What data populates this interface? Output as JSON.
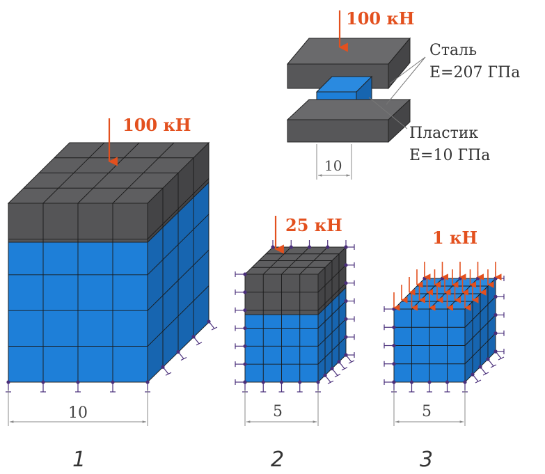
{
  "colors": {
    "steel": "#5a5a5c",
    "steel_dark": "#3e3e40",
    "plastic": "#1e7fd8",
    "plastic_dark": "#1765b0",
    "load_arrow": "#e3501e",
    "support": "#4a2f7a",
    "dim_line": "#8a8a8a",
    "text": "#333333"
  },
  "schematic": {
    "load": "100 кН",
    "steel_name": "Сталь",
    "steel_modulus": "E=207 ГПа",
    "plastic_name": "Пластик",
    "plastic_modulus": "E=10 ГПа",
    "width_dim": "10"
  },
  "models": [
    {
      "number": "1",
      "load": "100 кН",
      "width_dim": "10"
    },
    {
      "number": "2",
      "load": "25 кН",
      "width_dim": "5"
    },
    {
      "number": "3",
      "load": "1 кН",
      "width_dim": "5"
    }
  ]
}
